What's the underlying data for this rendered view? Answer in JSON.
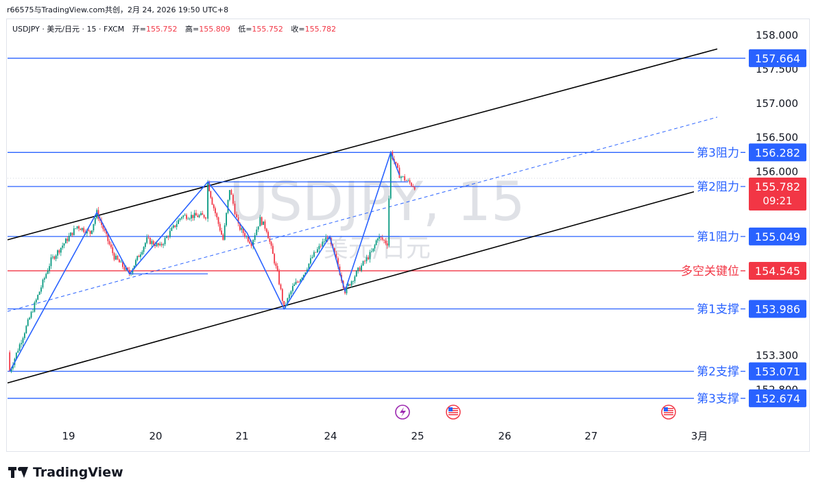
{
  "header": {
    "author_line": "r66575与TradingView.com共创，2月 24, 2026 19:50 UTC+8"
  },
  "legend": {
    "symbol": "USDJPY · 美元/日元 · 15 · FXCM",
    "open_label": "开=",
    "open_value": "155.752",
    "high_label": "高=",
    "high_value": "155.809",
    "low_label": "低=",
    "low_value": "155.752",
    "close_label": "收=",
    "close_value": "155.782"
  },
  "watermark": {
    "line1": "USDJPY, 15",
    "line2": "美元/日元"
  },
  "footer": {
    "brand": "TradingView"
  },
  "colors": {
    "level_blue": "#2962ff",
    "key_red": "#f23645",
    "channel": "#000000",
    "zigzag": "#2962ff",
    "candle_up": "#089981",
    "candle_down": "#f23645"
  },
  "chart_data": {
    "type": "candlestick",
    "symbol": "USDJPY",
    "timeframe": "15",
    "x_ticks": [
      "19",
      "20",
      "21",
      "24",
      "25",
      "26",
      "27",
      "3月"
    ],
    "y_ticks": [
      "158.000",
      "157.500",
      "157.000",
      "156.500",
      "156.000",
      "153.300",
      "152.800"
    ],
    "ylim": [
      152.45,
      158.1
    ],
    "current_price": {
      "value": "155.782",
      "countdown": "09:21"
    },
    "levels": [
      {
        "name": "",
        "value": 157.664,
        "label": "157.664",
        "color": "#2962ff"
      },
      {
        "name": "第3阻力",
        "value": 156.282,
        "label": "156.282",
        "color": "#2962ff"
      },
      {
        "name": "第2阻力",
        "value": 155.782,
        "label": "155.782",
        "color": "#2962ff"
      },
      {
        "name": "第1阻力",
        "value": 155.049,
        "label": "155.049",
        "color": "#2962ff"
      },
      {
        "name": "多空关键位",
        "value": 154.545,
        "label": "154.545",
        "color": "#f23645"
      },
      {
        "name": "第1支撑",
        "value": 153.986,
        "label": "153.986",
        "color": "#2962ff"
      },
      {
        "name": "第2支撑",
        "value": 153.071,
        "label": "153.071",
        "color": "#2962ff"
      },
      {
        "name": "第3支撑",
        "value": 152.674,
        "label": "152.674",
        "color": "#2962ff"
      }
    ],
    "price_path": [
      [
        0.0,
        153.35
      ],
      [
        0.05,
        153.07
      ],
      [
        1.0,
        154.7
      ],
      [
        1.6,
        155.2
      ],
      [
        1.9,
        155.1
      ],
      [
        2.05,
        155.4
      ],
      [
        2.45,
        154.75
      ],
      [
        2.8,
        154.5
      ],
      [
        3.2,
        155.0
      ],
      [
        3.5,
        154.9
      ],
      [
        4.0,
        155.35
      ],
      [
        4.55,
        155.35
      ],
      [
        4.6,
        155.85
      ],
      [
        4.7,
        155.55
      ],
      [
        4.95,
        155.0
      ],
      [
        5.1,
        155.75
      ],
      [
        5.3,
        155.2
      ],
      [
        5.6,
        154.95
      ],
      [
        5.8,
        155.3
      ],
      [
        5.95,
        155.15
      ],
      [
        6.2,
        154.5
      ],
      [
        6.35,
        154.0
      ],
      [
        6.55,
        154.3
      ],
      [
        6.8,
        154.5
      ],
      [
        7.0,
        154.75
      ],
      [
        7.35,
        155.05
      ],
      [
        7.55,
        154.7
      ],
      [
        7.75,
        154.25
      ],
      [
        8.05,
        154.55
      ],
      [
        8.4,
        154.85
      ],
      [
        8.5,
        155.05
      ],
      [
        8.72,
        154.95
      ],
      [
        8.8,
        156.28
      ],
      [
        9.0,
        155.95
      ],
      [
        9.2,
        155.85
      ],
      [
        9.35,
        155.78
      ]
    ],
    "zigzag": [
      [
        0.05,
        153.07
      ],
      [
        2.05,
        155.4
      ],
      [
        2.8,
        154.5
      ],
      [
        4.6,
        155.85
      ],
      [
        5.5,
        155.1
      ],
      [
        6.35,
        153.986
      ],
      [
        7.4,
        155.049
      ],
      [
        7.75,
        154.25
      ],
      [
        8.8,
        156.282
      ],
      [
        9.0,
        155.95
      ]
    ],
    "channel_upper": [
      [
        0.0,
        155.0
      ],
      [
        16.3,
        157.8
      ]
    ],
    "channel_lower": [
      [
        0.0,
        152.9
      ],
      [
        16.3,
        155.8
      ]
    ],
    "channel_mid_dashed": [
      [
        0.0,
        153.95
      ],
      [
        16.3,
        156.8
      ]
    ]
  }
}
